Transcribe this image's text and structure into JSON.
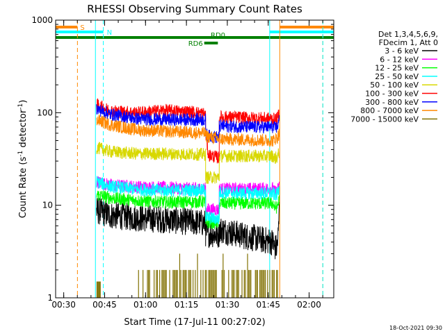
{
  "chart_data": {
    "type": "line",
    "title": "RHESSI Observing Summary Count Rates",
    "xlabel": "Start Time (17-Jul-11 00:27:02)",
    "ylabel_main": "Count Rate (s",
    "ylabel_sup1": "-1",
    "ylabel_mid": " detector",
    "ylabel_sup2": "-1",
    "ylabel_end": ")",
    "x_unit": "minutes after 00:27:02",
    "x_range": [
      0,
      102
    ],
    "y_scale": "log",
    "y_range": [
      1,
      1000
    ],
    "x_ticks": [
      {
        "t": 2.97,
        "label": "00:30"
      },
      {
        "t": 17.97,
        "label": "00:45"
      },
      {
        "t": 32.97,
        "label": "01:00"
      },
      {
        "t": 47.97,
        "label": "01:15"
      },
      {
        "t": 62.97,
        "label": "01:30"
      },
      {
        "t": 77.97,
        "label": "01:45"
      },
      {
        "t": 92.97,
        "label": "02:00"
      }
    ],
    "y_ticks": [
      {
        "v": 1,
        "label": "1"
      },
      {
        "v": 10,
        "label": "10"
      },
      {
        "v": 100,
        "label": "100"
      },
      {
        "v": 1000,
        "label": "1000"
      }
    ],
    "legend": {
      "position": "right",
      "header": [
        "Det 1,3,4,5,6,9,",
        "FDecim 1, Att 0"
      ],
      "entries": [
        {
          "label": "3 - 6 keV",
          "color": "#000000"
        },
        {
          "label": "6 - 12 keV",
          "color": "#ff00ff"
        },
        {
          "label": "12 - 25 keV",
          "color": "#00ff00"
        },
        {
          "label": "25 - 50 keV",
          "color": "#00ffff"
        },
        {
          "label": "50 - 100 keV",
          "color": "#d8d800"
        },
        {
          "label": "100 - 300 keV",
          "color": "#ff0000"
        },
        {
          "label": "300 - 800 keV",
          "color": "#0000ff"
        },
        {
          "label": "800 - 7000 keV",
          "color": "#ff8800"
        },
        {
          "label": "7000 - 15000 keV",
          "color": "#807000"
        }
      ]
    },
    "series": [
      {
        "name": "3 - 6 keV",
        "color": "#000000",
        "segments": [
          [
            [
              15.0,
              8.8
            ],
            [
              20,
              7.8
            ],
            [
              30,
              7.3
            ],
            [
              40,
              7.0
            ],
            [
              50,
              6.6
            ],
            [
              55.0,
              6.4
            ]
          ],
          [
            [
              55.0,
              5.0
            ],
            [
              60.0,
              4.8
            ]
          ],
          [
            [
              60.0,
              5.5
            ],
            [
              70,
              4.6
            ],
            [
              80.0,
              4.0
            ]
          ],
          [
            [
              80.0,
              3.5
            ],
            [
              81.2,
              3.5
            ],
            [
              81.7,
              5.0
            ],
            [
              82.0,
              9.0
            ]
          ]
        ]
      },
      {
        "name": "6 - 12 keV",
        "color": "#ff00ff",
        "segments": [
          [
            [
              15.0,
              18
            ],
            [
              20,
              16.5
            ],
            [
              30,
              15.8
            ],
            [
              40,
              15.5
            ],
            [
              50,
              15.2
            ],
            [
              55.0,
              15.0
            ]
          ],
          [
            [
              55.0,
              9.0
            ],
            [
              60.0,
              9.0
            ]
          ],
          [
            [
              60.0,
              15.0
            ],
            [
              70,
              15.0
            ],
            [
              80.0,
              15.2
            ]
          ],
          [
            [
              80.0,
              14.0
            ],
            [
              81.2,
              14.2
            ],
            [
              82.0,
              16.0
            ]
          ]
        ]
      },
      {
        "name": "12 - 25 keV",
        "color": "#00ff00",
        "segments": [
          [
            [
              15.0,
              13
            ],
            [
              20,
              12
            ],
            [
              30,
              11.2
            ],
            [
              40,
              10.8
            ],
            [
              50,
              10.8
            ],
            [
              55.0,
              11.0
            ]
          ],
          [
            [
              55.0,
              6.5
            ],
            [
              60.0,
              6.5
            ]
          ],
          [
            [
              60.0,
              10.5
            ],
            [
              70,
              10.5
            ],
            [
              80.0,
              10.5
            ]
          ],
          [
            [
              80.0,
              9.5
            ],
            [
              81.2,
              9.5
            ],
            [
              82.0,
              11.5
            ]
          ]
        ]
      },
      {
        "name": "25 - 50 keV",
        "color": "#00ffff",
        "segments": [
          [
            [
              15.0,
              18
            ],
            [
              20,
              16
            ],
            [
              30,
              14.8
            ],
            [
              40,
              14.5
            ],
            [
              50,
              14.5
            ],
            [
              55.0,
              14.5
            ]
          ],
          [
            [
              55.0,
              7.5
            ],
            [
              60.0,
              7.0
            ]
          ],
          [
            [
              60.0,
              13.8
            ],
            [
              70,
              13.5
            ],
            [
              80.0,
              13.5
            ]
          ],
          [
            [
              80.0,
              13.0
            ],
            [
              81.2,
              13.0
            ],
            [
              82.0,
              15.0
            ]
          ]
        ]
      },
      {
        "name": "50 - 100 keV",
        "color": "#d8d800",
        "segments": [
          [
            [
              15.0,
              42
            ],
            [
              20,
              38
            ],
            [
              30,
              36
            ],
            [
              40,
              36
            ],
            [
              50,
              35.5
            ],
            [
              55.0,
              35.5
            ]
          ],
          [
            [
              55.0,
              20
            ],
            [
              60.0,
              20
            ]
          ],
          [
            [
              60.0,
              34
            ],
            [
              70,
              34
            ],
            [
              80.0,
              34
            ]
          ],
          [
            [
              80.0,
              32
            ],
            [
              81.2,
              33
            ],
            [
              82.0,
              37
            ]
          ]
        ]
      },
      {
        "name": "100 - 300 keV",
        "color": "#ff0000",
        "segments": [
          [
            [
              15.0,
              122
            ],
            [
              20,
              105
            ],
            [
              30,
              100
            ],
            [
              40,
              106
            ],
            [
              50,
              102
            ],
            [
              55.0,
              97
            ]
          ],
          [
            [
              55.0,
              62
            ],
            [
              56.0,
              35
            ],
            [
              60.0,
              32.5
            ]
          ],
          [
            [
              60.0,
              90
            ],
            [
              70,
              88
            ],
            [
              80.0,
              86
            ]
          ],
          [
            [
              80.0,
              85
            ],
            [
              81.2,
              85
            ],
            [
              82.0,
              100
            ]
          ]
        ]
      },
      {
        "name": "300 - 800 keV",
        "color": "#0000ff",
        "segments": [
          [
            [
              15.0,
              110
            ],
            [
              20,
              96
            ],
            [
              30,
              86
            ],
            [
              40,
              84
            ],
            [
              50,
              84
            ],
            [
              55.0,
              84
            ]
          ],
          [
            [
              55.0,
              60
            ],
            [
              56.0,
              56
            ],
            [
              60.0,
              54
            ]
          ],
          [
            [
              60.0,
              72
            ],
            [
              70,
              70
            ],
            [
              80.0,
              70
            ]
          ],
          [
            [
              80.0,
              68
            ],
            [
              81.2,
              70
            ],
            [
              82.0,
              82
            ]
          ]
        ]
      },
      {
        "name": "800 - 7000 keV",
        "color": "#ff8800",
        "segments": [
          [
            [
              15.0,
              84
            ],
            [
              20,
              74
            ],
            [
              30,
              65
            ],
            [
              40,
              63
            ],
            [
              50,
              61
            ],
            [
              55.0,
              60
            ]
          ],
          [
            [
              55.0,
              56
            ],
            [
              60.0,
              52
            ]
          ],
          [
            [
              60.0,
              52
            ],
            [
              70,
              51
            ],
            [
              80.0,
              50
            ]
          ],
          [
            [
              80.0,
              52
            ],
            [
              81.2,
              53
            ],
            [
              82.0,
              60
            ]
          ]
        ]
      }
    ],
    "annotations": {
      "flag_bars": [
        {
          "label": "S",
          "color": "#ff8800",
          "intervals": [
            [
              0,
              8
            ],
            [
              82.2,
              102
            ]
          ],
          "y_offset": 10
        },
        {
          "label": "N",
          "color": "#00ffff",
          "intervals": [
            [
              0,
              17.5
            ],
            [
              78.5,
              102
            ]
          ],
          "y_offset": 17
        },
        {
          "label": "RD0",
          "color": "#008000",
          "intervals": [
            [
              0,
              102
            ]
          ],
          "y_offset": 25
        },
        {
          "label": "RD6",
          "color": "#008000",
          "intervals": [
            [
              54.5,
              59.5
            ]
          ],
          "y_offset": 33
        }
      ],
      "vlines": [
        {
          "t": 8.0,
          "color": "#ff8800",
          "style": "dashed"
        },
        {
          "t": 17.5,
          "color": "#00ffff",
          "style": "dashed"
        },
        {
          "t": 14.6,
          "color": "#00ffff",
          "style": "solid"
        },
        {
          "t": 78.5,
          "color": "#00ffff",
          "style": "solid"
        },
        {
          "t": 82.2,
          "color": "#ff8800",
          "style": "solid"
        },
        {
          "t": 98.0,
          "color": "#ff8800",
          "style": "dashed"
        },
        {
          "t": 98.0,
          "color": "#00ffff",
          "style": "dashed"
        }
      ]
    },
    "footer_timestamp": "18-Oct-2021 09:30"
  }
}
